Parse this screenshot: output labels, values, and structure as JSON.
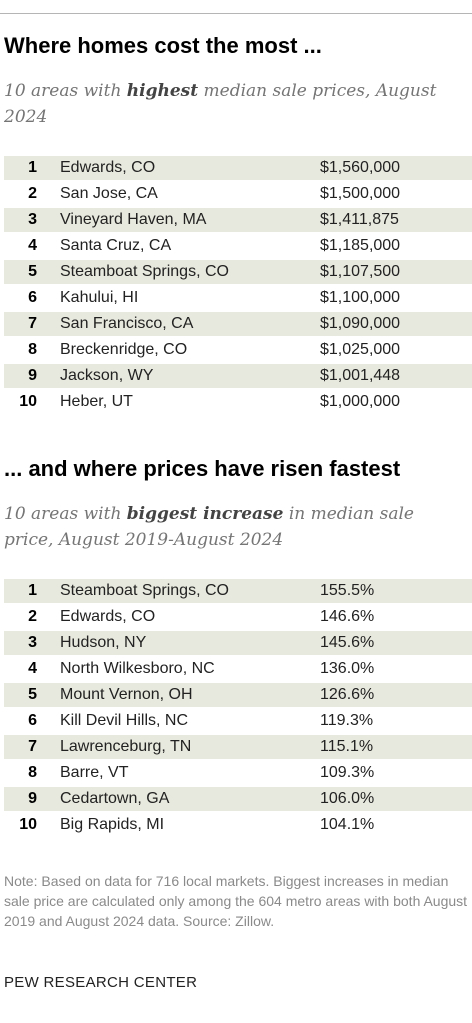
{
  "chart_data": [
    {
      "type": "table",
      "title": "Where homes cost the most ...",
      "subtitle_parts": [
        "10 areas with ",
        "highest",
        " median sale prices, August 2024"
      ],
      "rows": [
        {
          "rank": "1",
          "place": "Edwards, CO",
          "value": "$1,560,000"
        },
        {
          "rank": "2",
          "place": "San Jose, CA",
          "value": "$1,500,000"
        },
        {
          "rank": "3",
          "place": "Vineyard Haven, MA",
          "value": "$1,411,875"
        },
        {
          "rank": "4",
          "place": "Santa Cruz, CA",
          "value": "$1,185,000"
        },
        {
          "rank": "5",
          "place": "Steamboat Springs, CO",
          "value": "$1,107,500"
        },
        {
          "rank": "6",
          "place": "Kahului, HI",
          "value": "$1,100,000"
        },
        {
          "rank": "7",
          "place": "San Francisco, CA",
          "value": "$1,090,000"
        },
        {
          "rank": "8",
          "place": "Breckenridge, CO",
          "value": "$1,025,000"
        },
        {
          "rank": "9",
          "place": "Jackson, WY",
          "value": "$1,001,448"
        },
        {
          "rank": "10",
          "place": "Heber, UT",
          "value": "$1,000,000"
        }
      ]
    },
    {
      "type": "table",
      "title": "... and where prices have risen fastest",
      "subtitle_parts": [
        "10 areas with ",
        "biggest increase",
        " in median sale price, August 2019-August 2024"
      ],
      "rows": [
        {
          "rank": "1",
          "place": "Steamboat Springs, CO",
          "value": "155.5%"
        },
        {
          "rank": "2",
          "place": "Edwards, CO",
          "value": "146.6%"
        },
        {
          "rank": "3",
          "place": "Hudson, NY",
          "value": "145.6%"
        },
        {
          "rank": "4",
          "place": "North Wilkesboro, NC",
          "value": "136.0%"
        },
        {
          "rank": "5",
          "place": "Mount Vernon, OH",
          "value": "126.6%"
        },
        {
          "rank": "6",
          "place": "Kill Devil Hills, NC",
          "value": "119.3%"
        },
        {
          "rank": "7",
          "place": "Lawrenceburg, TN",
          "value": "115.1%"
        },
        {
          "rank": "8",
          "place": "Barre, VT",
          "value": "109.3%"
        },
        {
          "rank": "9",
          "place": "Cedartown, GA",
          "value": "106.0%"
        },
        {
          "rank": "10",
          "place": "Big Rapids, MI",
          "value": "104.1%"
        }
      ]
    }
  ],
  "note": "Note: Based on data for 716 local markets. Biggest increases in median sale price are calculated only among the 604 metro areas with both August 2019 and August 2024 data. Source: Zillow.",
  "brand": "PEW RESEARCH CENTER",
  "colors": {
    "row_shade": "#e8e9de",
    "subtitle": "#757575",
    "note": "#8a8a8a",
    "rule": "#b5b5b5"
  }
}
